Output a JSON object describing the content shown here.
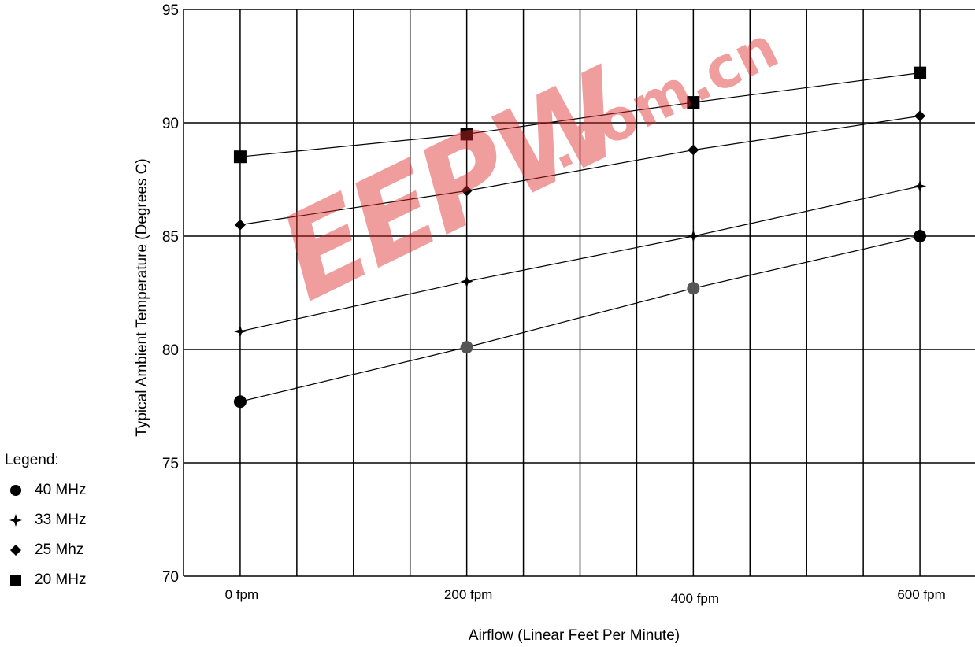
{
  "chart_data": {
    "type": "line",
    "xlabel": "Airflow (Linear Feet Per Minute)",
    "ylabel": "Typical Ambient Temperature (Degrees C)",
    "categories": [
      "0 fpm",
      "200 fpm",
      "400 fpm",
      "600 fpm"
    ],
    "x": [
      0,
      200,
      400,
      600
    ],
    "xlim": [
      -50,
      650
    ],
    "ylim": [
      70,
      95
    ],
    "yticks": [
      70,
      75,
      80,
      85,
      90,
      95
    ],
    "grid": true,
    "series": [
      {
        "name": "40 MHz",
        "marker": "circle",
        "values": [
          77.7,
          80.1,
          82.7,
          85.0
        ]
      },
      {
        "name": "33 MHz",
        "marker": "star",
        "values": [
          80.8,
          83.0,
          85.0,
          87.2
        ]
      },
      {
        "name": "25 Mhz",
        "marker": "diamond",
        "values": [
          85.5,
          87.0,
          88.8,
          90.3
        ]
      },
      {
        "name": "20 MHz",
        "marker": "square",
        "values": [
          88.5,
          89.5,
          90.9,
          92.2
        ]
      }
    ]
  },
  "legend": {
    "title": "Legend:",
    "items": [
      {
        "label": "40 MHz",
        "icon": "filled-circle-icon"
      },
      {
        "label": "33 MHz",
        "icon": "star-icon"
      },
      {
        "label": "25 Mhz",
        "icon": "filled-diamond-icon"
      },
      {
        "label": "20 MHz",
        "icon": "filled-square-icon"
      }
    ]
  },
  "watermark": {
    "logo": "EEPW",
    "domain": ".com.cn",
    "color": "#e02828"
  }
}
